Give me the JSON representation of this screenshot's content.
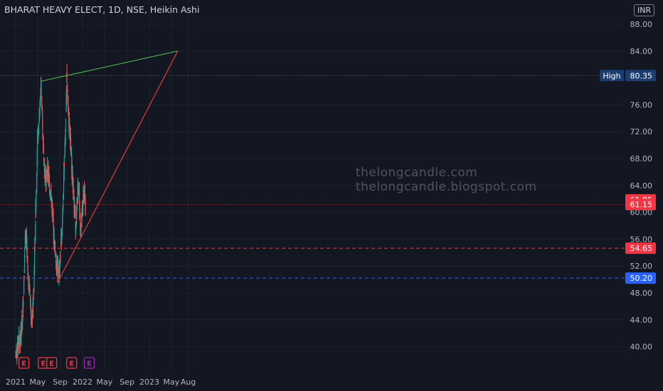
{
  "header": {
    "title": "BHARAT HEAVY ELECT, 1D, NSE, Heikin Ashi",
    "currency": "INR"
  },
  "watermark": {
    "line1": "thelongcandle.com",
    "line2": "thelongcandle.blogspot.com"
  },
  "chart_data": {
    "type": "candlestick",
    "title": "BHARAT HEAVY ELECT, 1D, NSE, Heikin Ashi",
    "currency": "INR",
    "ylim": [
      36.3,
      90.0
    ],
    "y_ticks": [
      "88.00",
      "84.00",
      "76.00",
      "72.00",
      "68.00",
      "64.00",
      "60.00",
      "56.00",
      "52.00",
      "48.00",
      "44.00",
      "40.00"
    ],
    "x_ticks": [
      "2021",
      "May",
      "Sep",
      "2022",
      "May",
      "Sep",
      "2023",
      "May",
      "Aug"
    ],
    "colors": {
      "up": "#26a69a",
      "down": "#ef5350",
      "trendline_upper": "#4caf50",
      "trendline_lower": "#e53935",
      "support_red": "#f23645",
      "support_blue": "#2962ff"
    },
    "price_series": [
      [
        "2021-01-01",
        38.5
      ],
      [
        "2021-01-15",
        40.5
      ],
      [
        "2021-02-01",
        41.5
      ],
      [
        "2021-02-10",
        46
      ],
      [
        "2021-02-22",
        55.5
      ],
      [
        "2021-03-01",
        56
      ],
      [
        "2021-03-10",
        50
      ],
      [
        "2021-03-20",
        48
      ],
      [
        "2021-03-31",
        43.5
      ],
      [
        "2021-04-10",
        48
      ],
      [
        "2021-04-20",
        60
      ],
      [
        "2021-04-30",
        70
      ],
      [
        "2021-05-10",
        74
      ],
      [
        "2021-05-20",
        79
      ],
      [
        "2021-05-27",
        74
      ],
      [
        "2021-06-05",
        67
      ],
      [
        "2021-06-15",
        65
      ],
      [
        "2021-06-25",
        66.5
      ],
      [
        "2021-07-05",
        64
      ],
      [
        "2021-07-15",
        62
      ],
      [
        "2021-07-25",
        58
      ],
      [
        "2021-08-05",
        54
      ],
      [
        "2021-08-15",
        52
      ],
      [
        "2021-08-23",
        50.5
      ],
      [
        "2021-09-01",
        53
      ],
      [
        "2021-09-10",
        57
      ],
      [
        "2021-09-20",
        64
      ],
      [
        "2021-09-30",
        72
      ],
      [
        "2021-10-07",
        80
      ],
      [
        "2021-10-14",
        75
      ],
      [
        "2021-10-25",
        72
      ],
      [
        "2021-11-05",
        66
      ],
      [
        "2021-11-15",
        62
      ],
      [
        "2021-11-25",
        57.5
      ],
      [
        "2021-12-05",
        63
      ],
      [
        "2021-12-12",
        65
      ],
      [
        "2021-12-20",
        57
      ],
      [
        "2021-12-31",
        60
      ],
      [
        "2022-01-10",
        63.5
      ],
      [
        "2022-01-17",
        60.5
      ]
    ],
    "trendlines": [
      {
        "from": [
          "2021-05-18",
          79.5
        ],
        "to": [
          "2023-06-05",
          84.0
        ]
      },
      {
        "from": [
          "2021-08-17",
          49.5
        ],
        "to": [
          "2023-06-05",
          84.0
        ]
      }
    ],
    "horizontal_levels": [
      {
        "label": "High",
        "value": "80.35",
        "style": "dotted",
        "color": "#787b86"
      },
      {
        "value": "61.15",
        "style": "dotted",
        "color": "#f23645"
      },
      {
        "value": "54.65",
        "style": "dashed",
        "color": "#f23645"
      },
      {
        "value": "50.20",
        "style": "dashed",
        "color": "#2962ff"
      }
    ],
    "last_price": "61.85",
    "events": [
      {
        "date": "2021-02-15",
        "label": "E",
        "color": "#f23645"
      },
      {
        "date": "2021-06-01",
        "label": "E",
        "color": "#f23645"
      },
      {
        "date": "2021-07-17",
        "label": "E",
        "color": "#f23645"
      },
      {
        "date": "2021-11-03",
        "label": "E",
        "color": "#f23645"
      },
      {
        "date": "2022-02-07",
        "label": "E",
        "color": "#9c27b0"
      }
    ]
  }
}
